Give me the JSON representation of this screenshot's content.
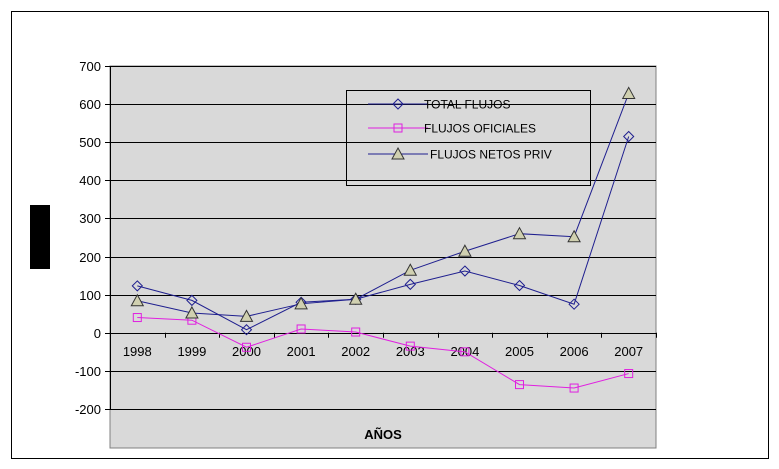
{
  "chart_data": {
    "type": "line",
    "xlabel": "AÑOS",
    "ylabel": "",
    "ylim": [
      -200,
      700
    ],
    "yticks": [
      -200,
      -100,
      0,
      100,
      200,
      300,
      400,
      500,
      600,
      700
    ],
    "categories": [
      "1998",
      "1999",
      "2000",
      "2001",
      "2002",
      "2003",
      "2004",
      "2005",
      "2006",
      "2007"
    ],
    "grid": "horizontal",
    "legend_position": "top-right",
    "series": [
      {
        "name": "TOTAL FLUJOS",
        "marker": "diamond",
        "color": "#1F1F8F",
        "values": [
          123,
          85,
          8,
          80,
          88,
          127,
          162,
          124,
          75,
          515
        ]
      },
      {
        "name": "FLUJOS OFICIALES",
        "marker": "square",
        "color": "#E020E0",
        "values": [
          40,
          33,
          -38,
          10,
          2,
          -35,
          -50,
          -136,
          -145,
          -107
        ]
      },
      {
        "name": "FLUJOS NETOS PRIV",
        "marker": "triangle",
        "color": "#1F1F8F",
        "values": [
          84,
          52,
          43,
          76,
          88,
          164,
          214,
          260,
          252,
          628
        ]
      }
    ]
  }
}
